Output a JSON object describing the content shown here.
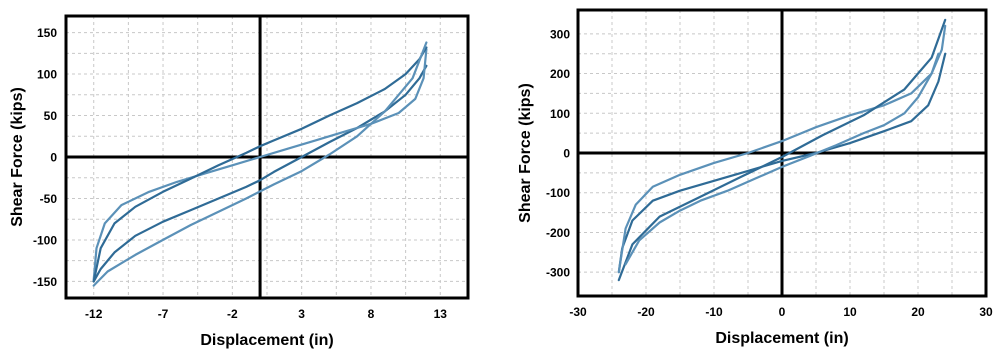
{
  "colors": {
    "frame": "#000000",
    "grid": "#c8c8c8",
    "curve": "#2f6b96",
    "curve_light": "#5b91b8",
    "axis_text": "#000000"
  },
  "chart_data": [
    {
      "type": "line",
      "title": "",
      "xlabel": "Displacement (in)",
      "ylabel": "Shear Force (kips)",
      "xlim": [
        -14,
        15
      ],
      "ylim": [
        -170,
        170
      ],
      "xticks": [
        -12,
        -7,
        -2,
        3,
        8,
        13
      ],
      "xtick_labels": [
        "-12",
        "-7",
        "-2",
        "3",
        "8",
        "13"
      ],
      "yticks": [
        -150,
        -100,
        -50,
        0,
        50,
        100,
        150
      ],
      "ytick_labels": [
        "-150",
        "-100",
        "-50",
        "0",
        "50",
        "100",
        "150"
      ],
      "grid": true,
      "grid_x": [
        -12,
        -9.5,
        -7,
        -4.5,
        -2,
        0.5,
        3,
        5.5,
        8,
        10.5,
        13
      ],
      "grid_y": [
        -150,
        -125,
        -100,
        -75,
        -50,
        -25,
        0,
        25,
        50,
        75,
        100,
        125,
        150
      ],
      "series": [
        {
          "x": [
            -12,
            -11.5,
            -10.5,
            -9,
            -7,
            -5,
            -3,
            -1,
            0,
            1,
            3,
            5,
            7,
            9,
            10.5,
            11.5,
            12
          ],
          "y": [
            -150,
            -135,
            -115,
            -95,
            -78,
            -64,
            -50,
            -36,
            -28,
            -18,
            0,
            18,
            35,
            55,
            75,
            95,
            110
          ]
        },
        {
          "x": [
            12,
            11.8,
            11.2,
            10,
            8,
            6,
            4,
            2,
            0,
            -2,
            -4,
            -6,
            -8,
            -10,
            -11.2,
            -11.8,
            -12
          ],
          "y": [
            130,
            95,
            70,
            53,
            40,
            30,
            20,
            10,
            0,
            -10,
            -20,
            -30,
            -42,
            -58,
            -80,
            -110,
            -148
          ]
        },
        {
          "x": [
            12,
            11.5,
            10.5,
            9,
            7,
            5,
            3,
            1,
            0,
            -1,
            -3,
            -5,
            -7,
            -9,
            -10.5,
            -11.5,
            -12
          ],
          "y": [
            132,
            118,
            100,
            82,
            65,
            50,
            34,
            20,
            13,
            5,
            -10,
            -26,
            -42,
            -60,
            -80,
            -110,
            -150
          ]
        },
        {
          "x": [
            -12,
            -11,
            -9,
            -7,
            -5,
            -3,
            -1,
            1,
            3,
            5,
            7,
            9,
            11,
            12
          ],
          "y": [
            -155,
            -138,
            -118,
            -100,
            -82,
            -66,
            -50,
            -33,
            -17,
            3,
            25,
            55,
            95,
            138
          ]
        }
      ]
    },
    {
      "type": "line",
      "title": "",
      "xlabel": "Displacement (in)",
      "ylabel": "Shear Force (kips)",
      "xlim": [
        -30,
        30
      ],
      "ylim": [
        -360,
        360
      ],
      "xticks": [
        -30,
        -20,
        -10,
        0,
        10,
        20,
        30
      ],
      "xtick_labels": [
        "-30",
        "-20",
        "-10",
        "0",
        "10",
        "20",
        "30"
      ],
      "yticks": [
        -300,
        -200,
        -100,
        0,
        100,
        200,
        300
      ],
      "ytick_labels": [
        "-300",
        "-200",
        "-100",
        "0",
        "100",
        "200",
        "300"
      ],
      "grid": true,
      "grid_x": [
        -25,
        -20,
        -15,
        -10,
        -5,
        0,
        5,
        10,
        15,
        20,
        25
      ],
      "grid_y": [
        -300,
        -250,
        -200,
        -150,
        -100,
        -50,
        0,
        50,
        100,
        150,
        200,
        250,
        300
      ],
      "series": [
        {
          "x": [
            -24,
            -23.5,
            -22,
            -19,
            -15,
            -10,
            -5,
            0,
            5,
            10,
            15,
            19,
            21.5,
            23,
            24
          ],
          "y": [
            -300,
            -240,
            -170,
            -120,
            -95,
            -70,
            -45,
            -20,
            0,
            25,
            55,
            80,
            120,
            180,
            250
          ]
        },
        {
          "x": [
            24,
            23.5,
            22,
            19,
            15,
            10,
            5,
            0,
            -5,
            -10,
            -15,
            -19,
            -21.5,
            -23,
            -24
          ],
          "y": [
            320,
            260,
            200,
            150,
            120,
            95,
            65,
            30,
            0,
            -25,
            -55,
            -85,
            -130,
            -190,
            -300
          ]
        },
        {
          "x": [
            -24,
            -22,
            -18,
            -12,
            -6,
            0,
            6,
            12,
            18,
            22,
            24
          ],
          "y": [
            -320,
            -230,
            -160,
            -110,
            -60,
            -10,
            45,
            95,
            160,
            240,
            335
          ]
        },
        {
          "x": [
            -23,
            -21,
            -18,
            -15,
            -12,
            -8,
            -4,
            0,
            4,
            8,
            12,
            15,
            18,
            20,
            22,
            23
          ],
          "y": [
            -280,
            -220,
            -175,
            -145,
            -120,
            -95,
            -65,
            -35,
            -8,
            20,
            50,
            70,
            100,
            140,
            200,
            250
          ]
        }
      ]
    }
  ]
}
